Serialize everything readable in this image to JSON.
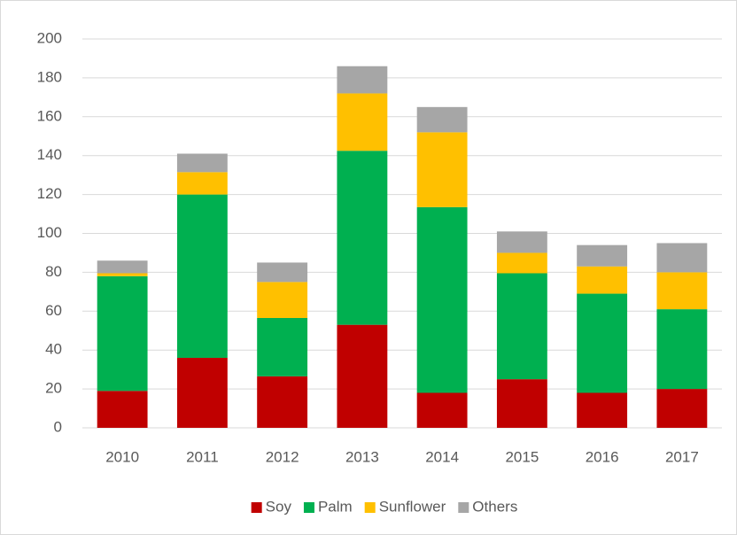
{
  "chart_data": {
    "type": "stacked_bar",
    "categories": [
      "2010",
      "2011",
      "2012",
      "2013",
      "2014",
      "2015",
      "2016",
      "2017"
    ],
    "series": [
      {
        "name": "Soy",
        "color": "#c00000",
        "values": [
          19,
          36,
          26.5,
          53,
          18,
          25,
          18,
          20
        ]
      },
      {
        "name": "Palm",
        "color": "#00b050",
        "values": [
          59,
          84,
          30,
          89.5,
          95.5,
          54.5,
          51,
          41
        ]
      },
      {
        "name": "Sunflower",
        "color": "#ffc000",
        "values": [
          1.5,
          11.5,
          18.5,
          29.5,
          38.5,
          10.5,
          14,
          19
        ]
      },
      {
        "name": "Others",
        "color": "#a6a6a6",
        "values": [
          6.5,
          9.5,
          10,
          14,
          13,
          11,
          11,
          15
        ]
      }
    ],
    "ylim": [
      0,
      200
    ],
    "yticks": [
      0,
      20,
      40,
      60,
      80,
      100,
      120,
      140,
      160,
      180,
      200
    ],
    "grid": true,
    "legend": "bottom"
  }
}
